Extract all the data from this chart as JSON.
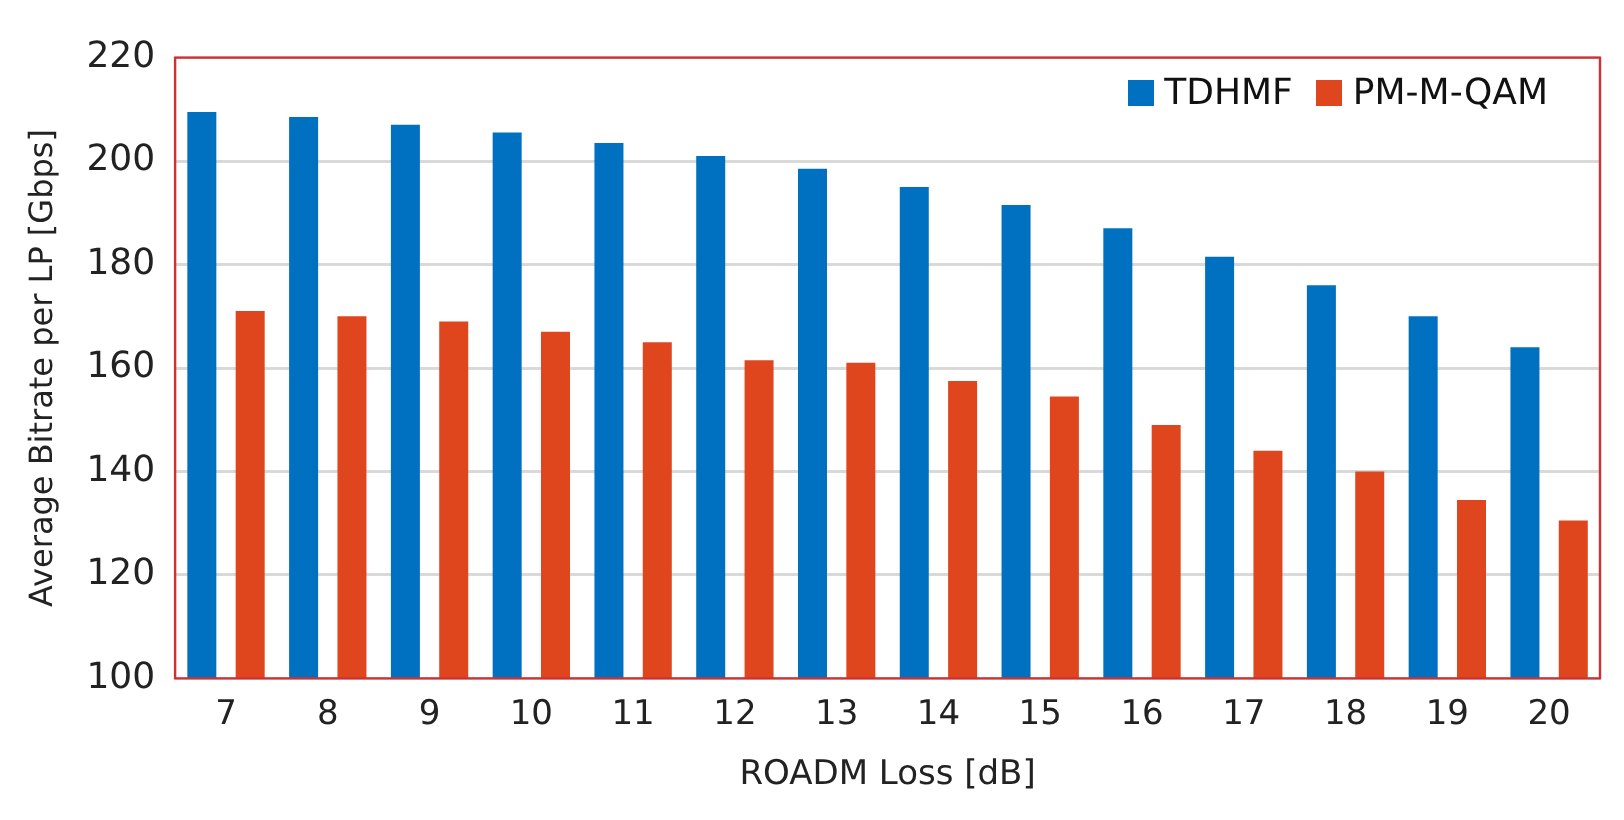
{
  "chart_data": {
    "type": "bar",
    "xlabel": "ROADM Loss [dB]",
    "ylabel": "Average Bitrate per LP [Gbps]",
    "categories": [
      "7",
      "8",
      "9",
      "10",
      "11",
      "12",
      "13",
      "14",
      "15",
      "16",
      "17",
      "18",
      "19",
      "20"
    ],
    "series": [
      {
        "name": "TDHMF",
        "color": "#0070c0",
        "values": [
          209.5,
          208.5,
          207,
          205.5,
          203.5,
          201,
          198.5,
          195,
          191.5,
          187,
          181.5,
          176,
          170,
          164
        ]
      },
      {
        "name": "PM-M-QAM",
        "color": "#e0461e",
        "values": [
          171,
          170,
          169,
          167,
          165,
          161.5,
          161,
          157.5,
          154.5,
          149,
          144,
          140,
          134.5,
          130.5
        ]
      }
    ],
    "ylim": [
      100,
      220
    ],
    "yticks": [
      100,
      120,
      140,
      160,
      180,
      200,
      220
    ],
    "grid": "y",
    "legend": "top right"
  }
}
